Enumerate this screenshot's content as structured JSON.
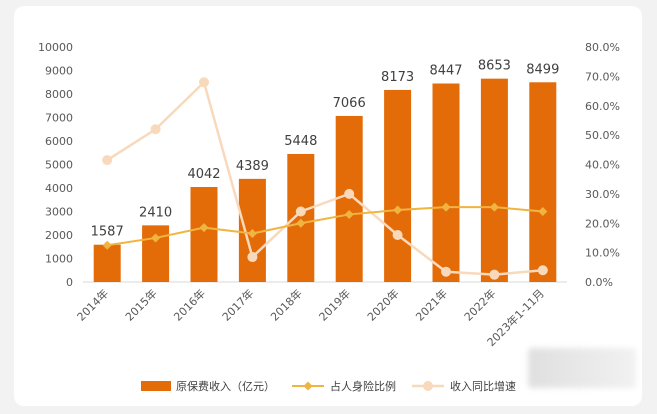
{
  "chart_data": {
    "type": "bar",
    "categories": [
      "2014年",
      "2015年",
      "2016年",
      "2017年",
      "2018年",
      "2019年",
      "2020年",
      "2021年",
      "2022年",
      "2023年1-11月"
    ],
    "series": [
      {
        "name": "原保费收入（亿元）",
        "type": "bar",
        "axis": "left",
        "values": [
          1587,
          2410,
          4042,
          4389,
          5448,
          7066,
          8173,
          8447,
          8653,
          8499
        ],
        "color": "#E36C09"
      },
      {
        "name": "占人身险比例",
        "type": "line",
        "axis": "right",
        "values": [
          0.125,
          0.15,
          0.185,
          0.165,
          0.2,
          0.23,
          0.245,
          0.255,
          0.255,
          0.24
        ],
        "color": "#F0B441"
      },
      {
        "name": "收入同比增速",
        "type": "line",
        "axis": "right",
        "values": [
          0.415,
          0.52,
          0.68,
          0.085,
          0.24,
          0.3,
          0.16,
          0.035,
          0.025,
          0.04
        ],
        "color": "#F8D9BC"
      }
    ],
    "left_axis": {
      "min": 0,
      "max": 10000,
      "ticks": [
        "0",
        "1000",
        "2000",
        "3000",
        "4000",
        "5000",
        "6000",
        "7000",
        "8000",
        "9000",
        "10000"
      ]
    },
    "right_axis": {
      "min": 0,
      "max": 0.8,
      "ticks": [
        "0.0%",
        "10.0%",
        "20.0%",
        "30.0%",
        "40.0%",
        "50.0%",
        "60.0%",
        "70.0%",
        "80.0%"
      ]
    },
    "data_labels": [
      "1587",
      "2410",
      "4042",
      "4389",
      "5448",
      "7066",
      "8173",
      "8447",
      "8653",
      "8499"
    ],
    "legend_position": "bottom",
    "grid": false
  }
}
